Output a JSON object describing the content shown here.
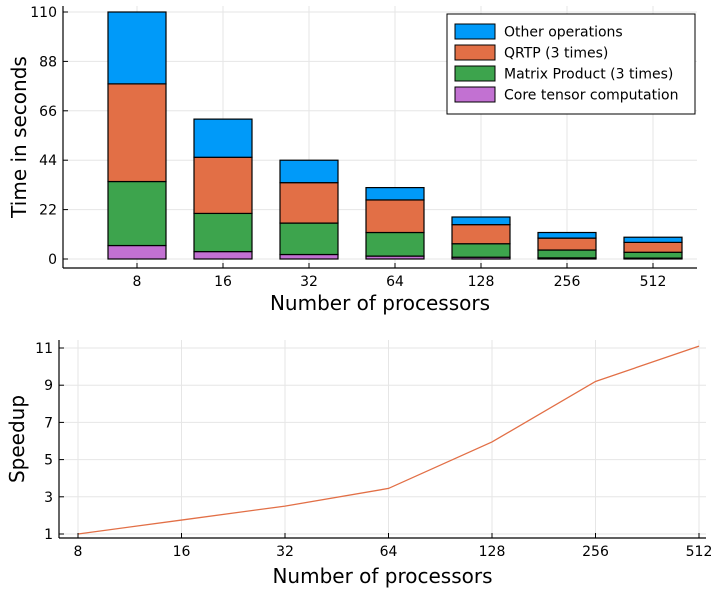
{
  "chart_data": [
    {
      "type": "bar",
      "stacked": true,
      "categories": [
        "8",
        "16",
        "32",
        "64",
        "128",
        "256",
        "512"
      ],
      "xlabel": "Number of processors",
      "ylabel": "Time in seconds",
      "ylim": [
        0,
        110
      ],
      "yticks": [
        0,
        22,
        44,
        66,
        88,
        110
      ],
      "grid": true,
      "legend_position": "top-right",
      "series": [
        {
          "name": "Core tensor computation",
          "color": "#c271d2",
          "values": [
            6.0,
            3.3,
            2.0,
            1.3,
            0.8,
            0.5,
            0.4
          ]
        },
        {
          "name": "Matrix Product (3 times)",
          "color": "#3da44d",
          "values": [
            28.5,
            17.0,
            14.0,
            10.5,
            6.0,
            3.5,
            2.6
          ]
        },
        {
          "name": "QRTP (3 times)",
          "color": "#e26f46",
          "values": [
            43.5,
            25.0,
            18.0,
            14.5,
            8.5,
            5.3,
            4.4
          ]
        },
        {
          "name": "Other operations",
          "color": "#009af9",
          "values": [
            32.0,
            17.0,
            10.0,
            5.5,
            3.4,
            2.5,
            2.3
          ]
        }
      ]
    },
    {
      "type": "line",
      "xscale": "log2",
      "x": [
        8,
        16,
        32,
        64,
        128,
        256,
        512
      ],
      "xticklabels": [
        "8",
        "16",
        "32",
        "64",
        "128",
        "256",
        "512"
      ],
      "xlabel": "Number of processors",
      "ylabel": "Speedup",
      "ylim": [
        0.8,
        11.3
      ],
      "yticks": [
        1,
        3,
        5,
        7,
        9,
        11
      ],
      "grid": true,
      "series": [
        {
          "color": "#e26f46",
          "values": [
            1.0,
            1.75,
            2.5,
            3.45,
            5.95,
            9.2,
            11.1
          ]
        }
      ]
    }
  ]
}
